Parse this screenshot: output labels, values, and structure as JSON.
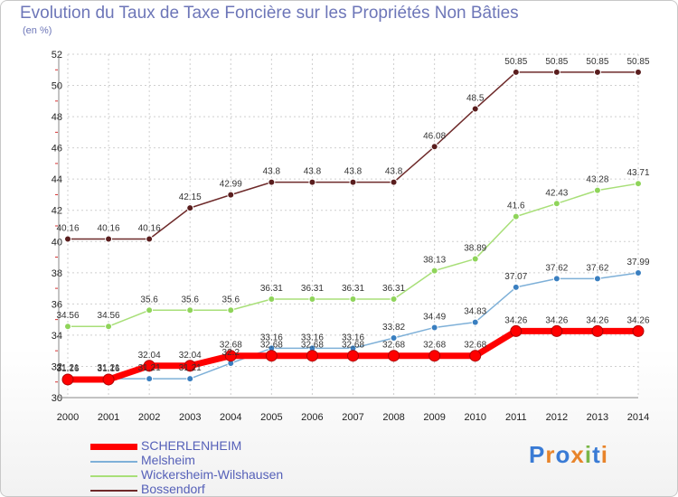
{
  "title": "Evolution du Taux de Taxe Foncière sur les Propriétés Non Bâties",
  "unit_label": "(en %)",
  "logo": {
    "text": "Proxiti",
    "colors": [
      "#3a7bd5",
      "#e8842a",
      "#3a7bd5",
      "#e8842a",
      "#7ab648",
      "#3a7bd5",
      "#e8842a"
    ]
  },
  "chart_data": {
    "type": "line",
    "title": "Evolution du Taux de Taxe Foncière sur les Propriétés Non Bâties",
    "ylabel": "(en %)",
    "xlabel": "",
    "x": [
      "2000",
      "2001",
      "2002",
      "2003",
      "2004",
      "2005",
      "2006",
      "2007",
      "2008",
      "2009",
      "2010",
      "2011",
      "2012",
      "2013",
      "2014"
    ],
    "ylim": [
      30,
      52
    ],
    "yticks": [
      30,
      32,
      34,
      36,
      38,
      40,
      42,
      44,
      46,
      48,
      50,
      52
    ],
    "grid": true,
    "legend_position": "bottom-left",
    "series": [
      {
        "name": "SCHERLENHEIM",
        "color": "#ff0000",
        "marker": "#ff0000",
        "width": 7,
        "values": [
          31.16,
          31.16,
          32.04,
          32.04,
          32.68,
          32.68,
          32.68,
          32.68,
          32.68,
          32.68,
          32.68,
          34.26,
          34.26,
          34.26,
          34.26
        ],
        "labels": [
          "31.16",
          "31.16",
          "32.04",
          "32.04",
          "32.68",
          "32.68",
          "32.68",
          "32.68",
          "32.68",
          "32.68",
          "32.68",
          "34.26",
          "34.26",
          "34.26",
          "34.26"
        ]
      },
      {
        "name": "Melsheim",
        "color": "#7eb0d8",
        "marker": "#3a7fc0",
        "width": 1.5,
        "values": [
          31.21,
          31.21,
          31.21,
          31.21,
          32.2,
          33.16,
          33.16,
          33.16,
          33.82,
          34.49,
          34.83,
          37.07,
          37.62,
          37.62,
          37.99
        ],
        "labels": [
          "31.21",
          "31.21",
          "31.21",
          "31.21",
          "32.2",
          "33.16",
          "33.16",
          "33.16",
          "33.82",
          "34.49",
          "34.83",
          "37.07",
          "37.62",
          "37.62",
          "37.99"
        ]
      },
      {
        "name": "Wickersheim-Wilshausen",
        "color": "#a8df78",
        "marker": "#8fd45a",
        "width": 1.5,
        "values": [
          34.56,
          34.56,
          35.6,
          35.6,
          35.6,
          36.31,
          36.31,
          36.31,
          36.31,
          38.13,
          38.89,
          41.6,
          42.43,
          43.28,
          43.71
        ],
        "labels": [
          "34.56",
          "34.56",
          "35.6",
          "35.6",
          "35.6",
          "36.31",
          "36.31",
          "36.31",
          "36.31",
          "38.13",
          "38.89",
          "41.6",
          "42.43",
          "43.28",
          "43.71"
        ]
      },
      {
        "name": "Bossendorf",
        "color": "#6e2a2a",
        "marker": "#5a1e1e",
        "width": 1.5,
        "values": [
          40.16,
          40.16,
          40.16,
          42.15,
          42.99,
          43.8,
          43.8,
          43.8,
          43.8,
          46.08,
          48.5,
          50.85,
          50.85,
          50.85,
          50.85
        ],
        "labels": [
          "40.16",
          "40.16",
          "40.16",
          "42.15",
          "42.99",
          "43.8",
          "43.8",
          "43.8",
          "43.8",
          "46.08",
          "48.5",
          "50.85",
          "50.85",
          "50.85",
          "50.85"
        ]
      }
    ]
  }
}
